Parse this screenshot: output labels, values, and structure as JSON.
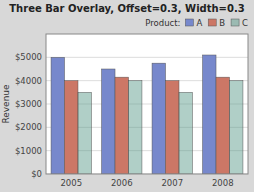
{
  "chart_data": {
    "type": "bar",
    "title": "Three Bar Overlay, Offset=0.3, Width=0.3",
    "y_label": "Revenue",
    "categories": [
      "2005",
      "2006",
      "2007",
      "2008"
    ],
    "series": [
      {
        "name": "A",
        "color": "#7788CC",
        "values": [
          5000,
          4500,
          4750,
          5100
        ]
      },
      {
        "name": "B",
        "color": "#CC7766",
        "values": [
          4000,
          4150,
          4000,
          4150
        ]
      },
      {
        "name": "C",
        "color": "#55998877",
        "values": [
          3500,
          4000,
          3500,
          4000
        ]
      }
    ],
    "ylim": [
      0,
      6000
    ],
    "yticks": [
      {
        "value": 0,
        "label": "$0"
      },
      {
        "value": 1000,
        "label": "$1000"
      },
      {
        "value": 2000,
        "label": "$2000"
      },
      {
        "value": 3000,
        "label": "$3000"
      },
      {
        "value": 4000,
        "label": "$4000"
      },
      {
        "value": 5000,
        "label": "$5000"
      }
    ],
    "grid": true,
    "legend": "upper right",
    "legend_title": "Product:"
  }
}
